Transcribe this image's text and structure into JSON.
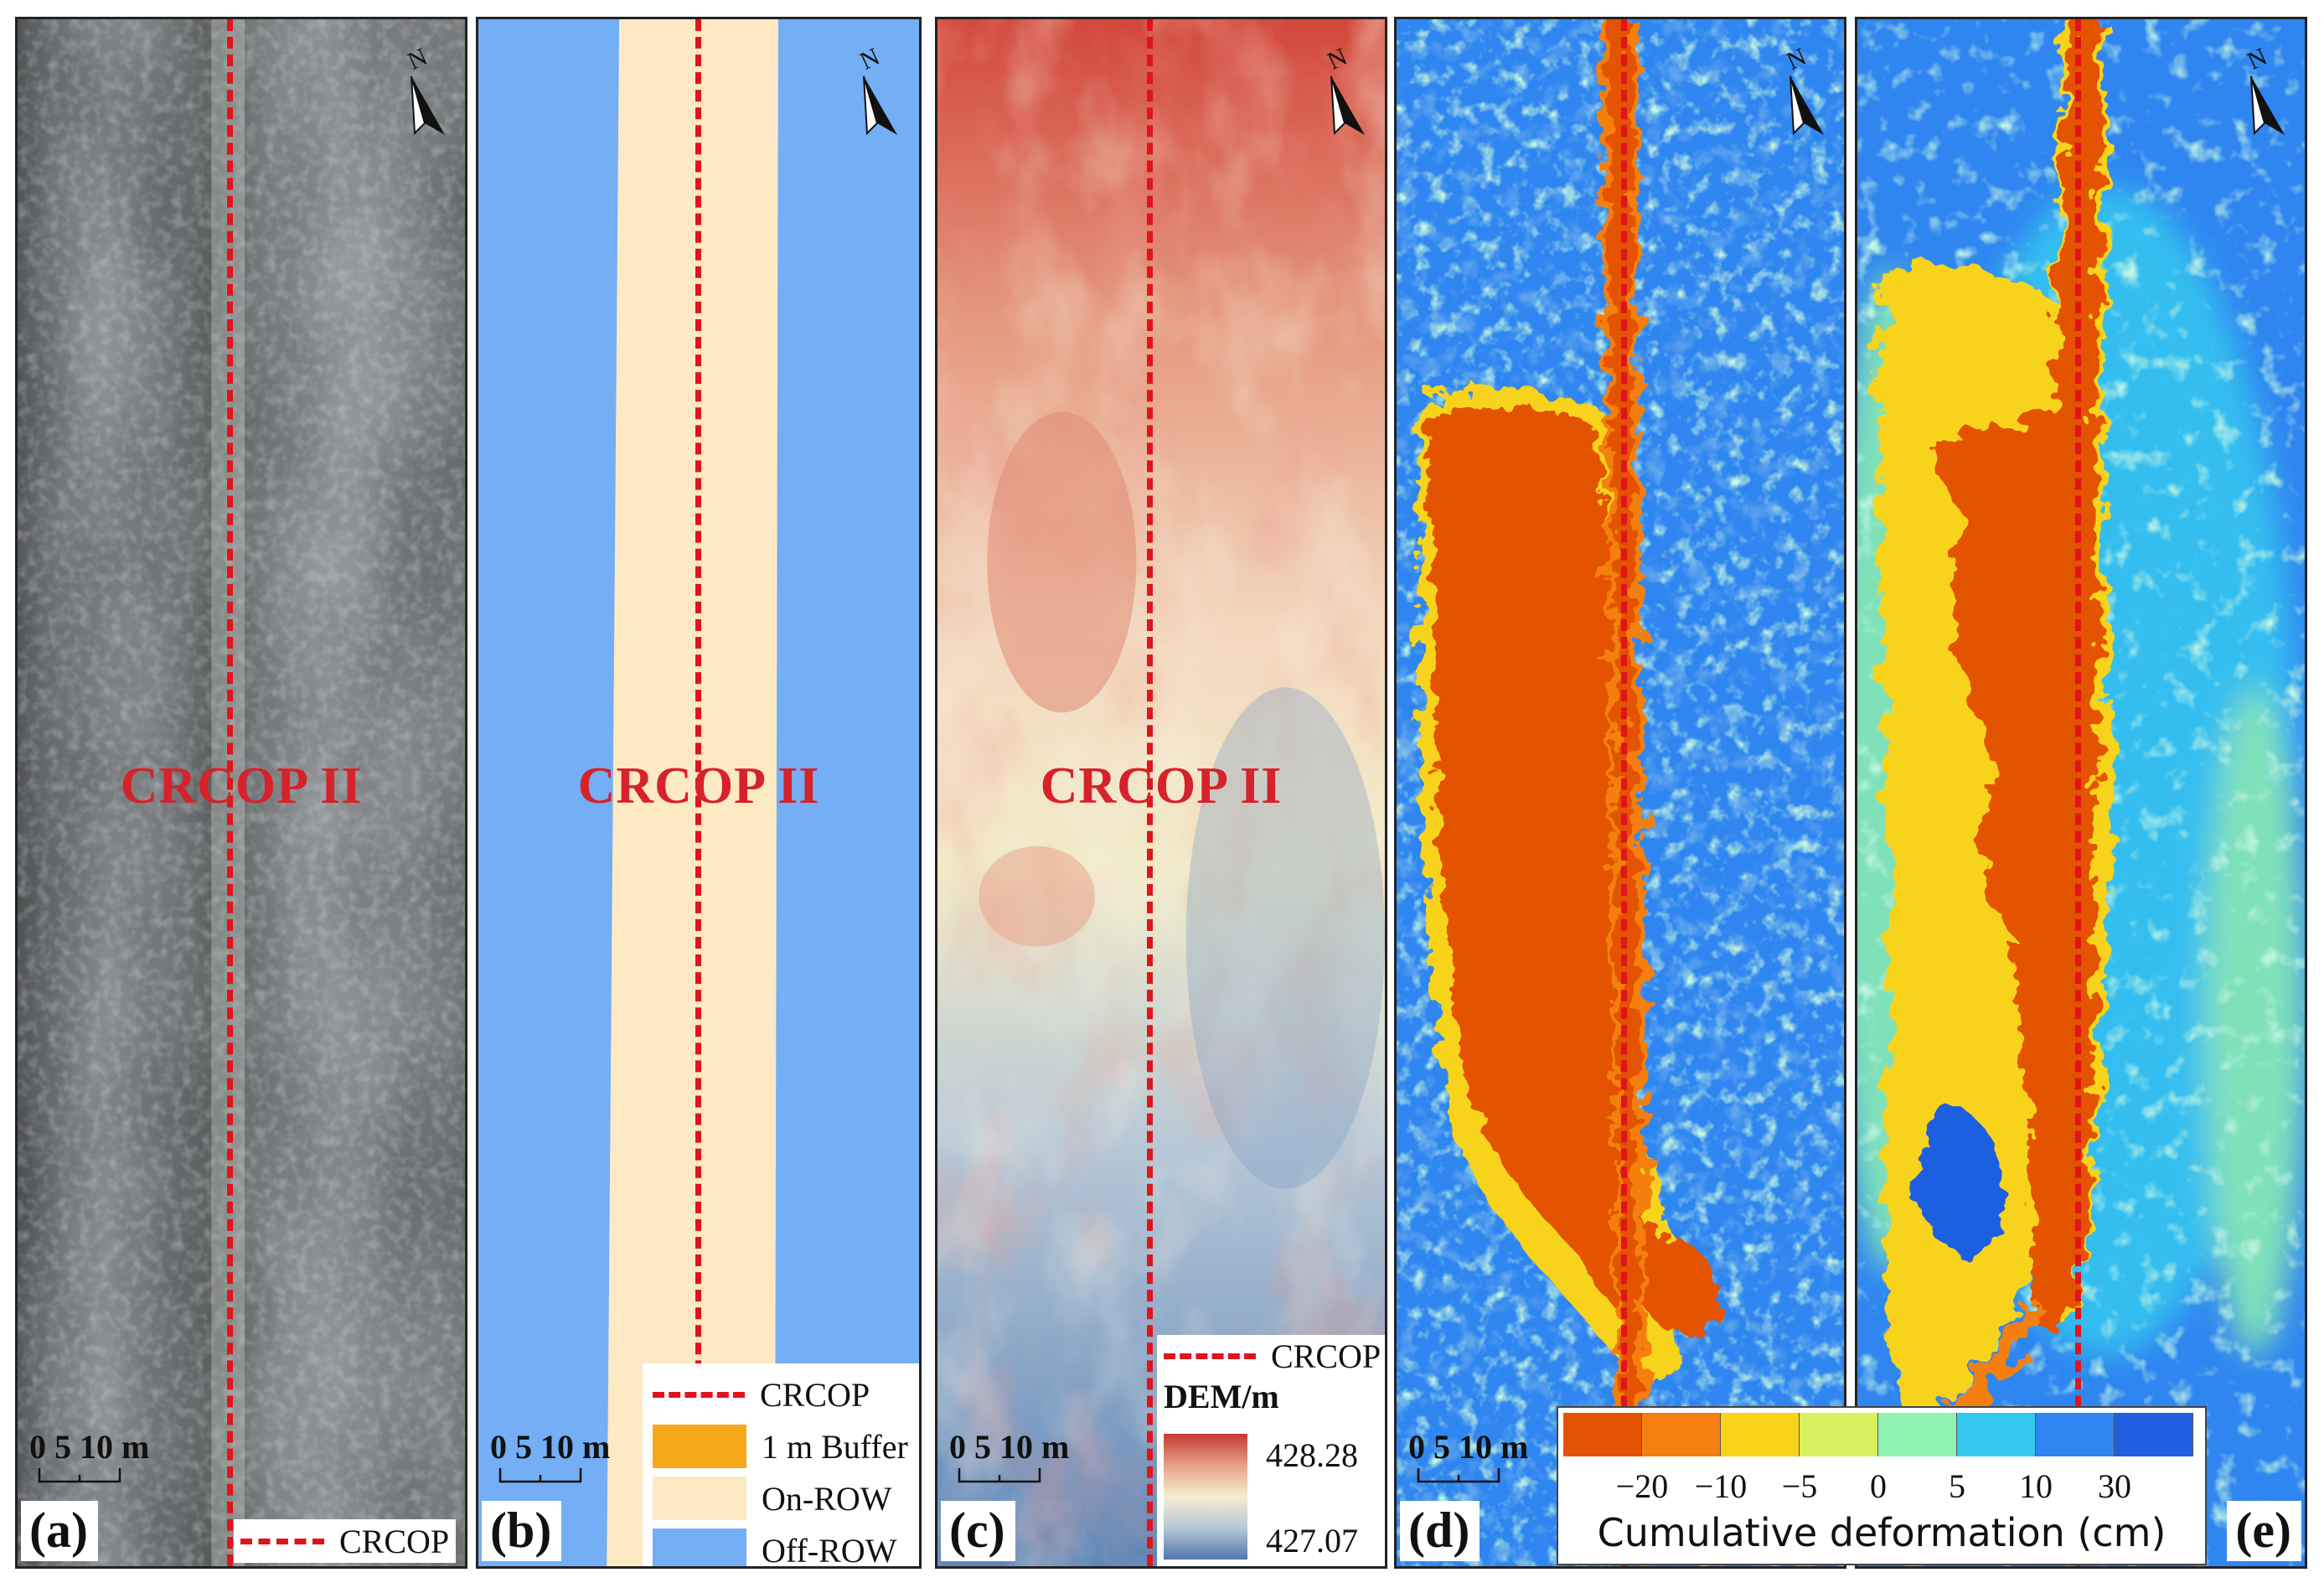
{
  "panels": [
    {
      "letter": "(a)",
      "site_label": "CRCOP II",
      "scale_label": "0 5 10 m"
    },
    {
      "letter": "(b)",
      "site_label": "CRCOP II",
      "scale_label": "0 5 10 m"
    },
    {
      "letter": "(c)",
      "site_label": "CRCOP II",
      "scale_label": "0 5 10 m"
    },
    {
      "letter": "(d)",
      "scale_label": "0 5 10 m"
    },
    {
      "letter": "(e)"
    }
  ],
  "north_label": "N",
  "legend_a": {
    "pipeline": "CRCOP"
  },
  "legend_b": {
    "pipeline": "CRCOP",
    "buffer": "1 m Buffer",
    "on_row": "On-ROW",
    "off_row": "Off-ROW"
  },
  "legend_c": {
    "pipeline": "CRCOP",
    "title": "DEM/m",
    "max": "428.28",
    "min": "427.07"
  },
  "deformation_legend": {
    "title": "Cumulative deformation (cm)",
    "ticks": [
      "−20",
      "−10",
      "−5",
      "0",
      "5",
      "10",
      "30"
    ],
    "colors": [
      "#e35303",
      "#f57f11",
      "#f8d31a",
      "#d9ef5e",
      "#8ff2b0",
      "#34c8f0",
      "#2f86f0",
      "#1f5fe0"
    ]
  },
  "colors": {
    "pipeline": "#e0141b",
    "on_row": "#fde9c4",
    "off_row": "#74aef5",
    "buffer": "#f7a81b",
    "label_red": "#d6222a"
  }
}
